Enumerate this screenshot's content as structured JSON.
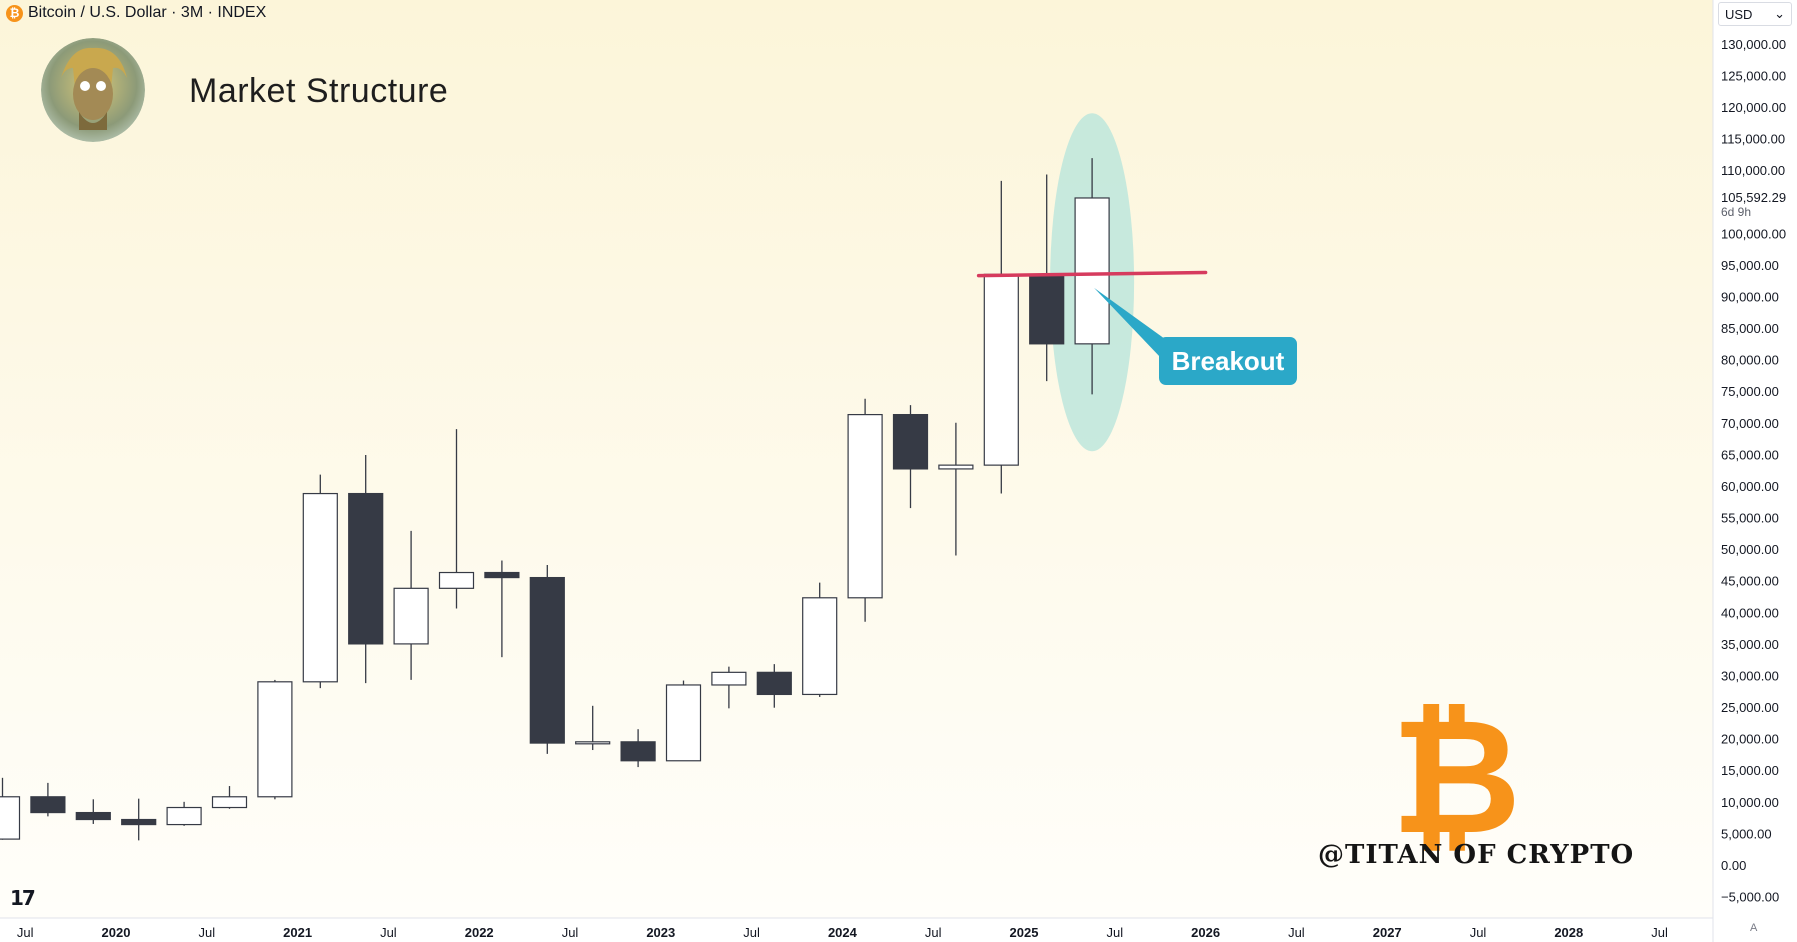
{
  "header": {
    "symbol_title": "Bitcoin / U.S. Dollar · 3M · INDEX",
    "coin_glyph": "₿"
  },
  "overlay": {
    "headline": "Market Structure",
    "annotation_label": "Breakout",
    "watermark": "@TITAN OF CRYPTO",
    "logo_glyph": "₿"
  },
  "price_scale": {
    "currency": "USD",
    "last_price": "105,592.29",
    "countdown": "6d 9h"
  },
  "footer": {
    "tv_logo": "17",
    "auto_scale": "A"
  },
  "colors": {
    "up_body": "#ffffff",
    "down_body": "#363a45",
    "wick": "#363a45",
    "resistance_line": "#d63b5e",
    "highlight": "#bde6dc",
    "callout": "#2ba8c8",
    "bitcoin_orange": "#f7931a"
  },
  "chart_data": {
    "type": "candlestick",
    "interval": "3M",
    "y_axis": {
      "range": [
        -7000,
        136000
      ],
      "ticks": [
        "130,000.00",
        "125,000.00",
        "120,000.00",
        "115,000.00",
        "110,000.00",
        "100,000.00",
        "95,000.00",
        "90,000.00",
        "85,000.00",
        "80,000.00",
        "75,000.00",
        "70,000.00",
        "65,000.00",
        "60,000.00",
        "55,000.00",
        "50,000.00",
        "45,000.00",
        "40,000.00",
        "35,000.00",
        "30,000.00",
        "25,000.00",
        "20,000.00",
        "15,000.00",
        "10,000.00",
        "5,000.00",
        "0.00",
        "−5,000.00"
      ],
      "tick_values": [
        130000,
        125000,
        120000,
        115000,
        110000,
        100000,
        95000,
        90000,
        85000,
        80000,
        75000,
        70000,
        65000,
        60000,
        55000,
        50000,
        45000,
        40000,
        35000,
        30000,
        25000,
        20000,
        15000,
        10000,
        5000,
        0,
        -5000
      ]
    },
    "x_axis": {
      "labels": [
        "Jul",
        "2020",
        "Jul",
        "2021",
        "Jul",
        "2022",
        "Jul",
        "2023",
        "Jul",
        "2024",
        "Jul",
        "2025",
        "Jul",
        "2026",
        "Jul",
        "2027",
        "Jul",
        "2028",
        "Jul"
      ],
      "label_index": [
        0.5,
        2.5,
        4.5,
        6.5,
        8.5,
        10.5,
        12.5,
        14.5,
        16.5,
        18.5,
        20.5,
        22.5,
        24.5,
        26.5,
        28.5,
        30.5,
        32.5,
        34.5,
        36.5
      ],
      "bold": [
        false,
        true,
        false,
        true,
        false,
        true,
        false,
        true,
        false,
        true,
        false,
        true,
        false,
        true,
        false,
        true,
        false,
        true,
        false
      ]
    },
    "candles": [
      {
        "period": "2019 Q2",
        "open": 4100,
        "high": 13800,
        "low": 4000,
        "close": 10800
      },
      {
        "period": "2019 Q3",
        "open": 10800,
        "high": 13000,
        "low": 7700,
        "close": 8300
      },
      {
        "period": "2019 Q4",
        "open": 8300,
        "high": 10400,
        "low": 6500,
        "close": 7200
      },
      {
        "period": "2020 Q1",
        "open": 7200,
        "high": 10500,
        "low": 3900,
        "close": 6400
      },
      {
        "period": "2020 Q2",
        "open": 6400,
        "high": 10000,
        "low": 6200,
        "close": 9100
      },
      {
        "period": "2020 Q3",
        "open": 9100,
        "high": 12500,
        "low": 8900,
        "close": 10800
      },
      {
        "period": "2020 Q4",
        "open": 10800,
        "high": 29300,
        "low": 10400,
        "close": 29000
      },
      {
        "period": "2021 Q1",
        "open": 29000,
        "high": 61800,
        "low": 28000,
        "close": 58800
      },
      {
        "period": "2021 Q2",
        "open": 58800,
        "high": 64900,
        "low": 28800,
        "close": 35000
      },
      {
        "period": "2021 Q3",
        "open": 35000,
        "high": 52900,
        "low": 29300,
        "close": 43800
      },
      {
        "period": "2021 Q4",
        "open": 43800,
        "high": 69000,
        "low": 40600,
        "close": 46300
      },
      {
        "period": "2022 Q1",
        "open": 46300,
        "high": 48200,
        "low": 32900,
        "close": 45500
      },
      {
        "period": "2022 Q2",
        "open": 45500,
        "high": 47500,
        "low": 17600,
        "close": 19300
      },
      {
        "period": "2022 Q3",
        "open": 19300,
        "high": 25200,
        "low": 18200,
        "close": 19500
      },
      {
        "period": "2022 Q4",
        "open": 19500,
        "high": 21500,
        "low": 15500,
        "close": 16500
      },
      {
        "period": "2023 Q1",
        "open": 16500,
        "high": 29200,
        "low": 16500,
        "close": 28500
      },
      {
        "period": "2023 Q2",
        "open": 28500,
        "high": 31400,
        "low": 24800,
        "close": 30500
      },
      {
        "period": "2023 Q3",
        "open": 30500,
        "high": 31800,
        "low": 24900,
        "close": 27000
      },
      {
        "period": "2023 Q4",
        "open": 27000,
        "high": 44700,
        "low": 26600,
        "close": 42300
      },
      {
        "period": "2024 Q1",
        "open": 42300,
        "high": 73800,
        "low": 38500,
        "close": 71300
      },
      {
        "period": "2024 Q2",
        "open": 71300,
        "high": 72800,
        "low": 56500,
        "close": 62700
      },
      {
        "period": "2024 Q3",
        "open": 62700,
        "high": 70000,
        "low": 49000,
        "close": 63300
      },
      {
        "period": "2024 Q4",
        "open": 63300,
        "high": 108300,
        "low": 58800,
        "close": 93500
      },
      {
        "period": "2025 Q1",
        "open": 93500,
        "high": 109300,
        "low": 76600,
        "close": 82500
      },
      {
        "period": "2025 Q2",
        "open": 82500,
        "high": 111900,
        "low": 74500,
        "close": 105592.29
      }
    ],
    "annotations": {
      "resistance_line": {
        "from_index": 21.5,
        "to_index": 26.5,
        "price_start": 93300,
        "price_end": 93800
      },
      "highlight_ellipse": {
        "center_index": 24,
        "price_top": 119000,
        "price_bottom": 65500
      },
      "callout": {
        "text_ref": "overlay.annotation_label",
        "anchor_index": 24,
        "anchor_price": 92000
      }
    }
  }
}
